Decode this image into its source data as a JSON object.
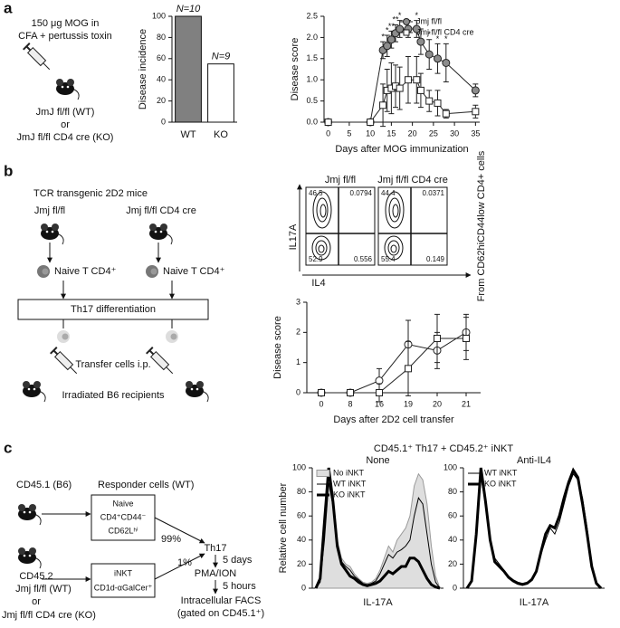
{
  "panel_labels": [
    "a",
    "b",
    "c"
  ],
  "panel_a": {
    "immunization": [
      "150 μg MOG in",
      "CFA + pertussis toxin"
    ],
    "mice": [
      "JmJ fl/fl (WT)",
      "or",
      "JmJ fl/fl CD4 cre (KO)"
    ]
  },
  "panel_b": {
    "title": "TCR transgenic 2D2 mice",
    "strains": [
      "Jmj fl/fl",
      "Jmj fl/fl CD4 cre"
    ],
    "cells": [
      "Naive T CD4⁺",
      "Naive T CD4⁺"
    ],
    "step": "Th17 differentiation",
    "transfer": "Transfer cells i.p.",
    "recipients": "Irradiated B6 recipients",
    "flow": {
      "titles": [
        "Jmj fl/fl",
        "Jmj fl/fl CD4 cre"
      ],
      "quadrants": [
        [
          46.5,
          0.0794,
          52.9,
          0.556
        ],
        [
          44.4,
          0.0371,
          55.4,
          0.149
        ]
      ],
      "y_label": "IL17A",
      "x_label": "IL4",
      "gate": "From CD62hiCD44low CD4+ cells"
    }
  },
  "panel_c": {
    "donor1": "CD45.1 (B6)",
    "responder": "Responder cells (WT)",
    "naive": [
      "Naive",
      "CD4⁺CD44⁻",
      "CD62Lʰⁱ"
    ],
    "naive_pct": "99%",
    "inkt": [
      "iNKT",
      "CD1d-αGalCer⁺"
    ],
    "inkt_pct": "1%",
    "donor2": [
      "CD45.2",
      "Jmj fl/fl (WT)",
      "or",
      "Jmj fl/fl CD4 cre (KO)"
    ],
    "steps": [
      "Th17",
      "5 days",
      "PMA/ION",
      "5 hours",
      "Intracellular FACS",
      "(gated on CD45.1⁺)"
    ],
    "histogram_title": "CD45.1⁺ Th17 + CD45.2⁺ iNKT"
  },
  "chart_data": [
    {
      "type": "bar",
      "y_label": "Disease incidence",
      "categories": [
        "WT",
        "KO"
      ],
      "values": [
        100,
        55
      ],
      "colors": [
        "#808080",
        "#ffffff"
      ],
      "annotations": [
        "N=10",
        "N=9"
      ],
      "ylim": [
        0,
        100
      ],
      "yticks": [
        0,
        20,
        40,
        60,
        80,
        100
      ]
    },
    {
      "type": "line",
      "x_label": "Days after MOG immunization",
      "y_label": "Disease score",
      "x": [
        0,
        10,
        13,
        14,
        15,
        16,
        17,
        19,
        21,
        22,
        24,
        26,
        28,
        35
      ],
      "series": [
        {
          "name": "Jmj fl/fl",
          "color": "#8c8c8c",
          "marker": "circle",
          "values": [
            0,
            0,
            1.7,
            1.8,
            1.95,
            2.1,
            2.2,
            2.2,
            2.2,
            1.9,
            1.6,
            1.5,
            1.4,
            0.75
          ],
          "errors": [
            0,
            0,
            0.2,
            0.25,
            0.2,
            0.2,
            0.2,
            0.2,
            0.2,
            0.3,
            0.35,
            0.35,
            0.45,
            0.15
          ],
          "significance": [
            null,
            null,
            "*",
            "*",
            "**",
            "**",
            "*",
            null,
            "*",
            null,
            "*",
            "*",
            "*",
            null
          ]
        },
        {
          "name": "Jmj fl/fl CD4 cre",
          "color": "#ffffff",
          "marker": "square",
          "values": [
            0,
            0,
            0.4,
            0.75,
            0.8,
            0.85,
            0.8,
            1.0,
            1.0,
            0.75,
            0.5,
            0.45,
            0.2,
            0.25
          ],
          "errors": [
            0,
            0,
            0.5,
            0.5,
            0.6,
            0.5,
            0.5,
            0.55,
            0.55,
            0.4,
            0.25,
            0.3,
            0.1,
            0.15
          ]
        }
      ],
      "xlim": [
        -1,
        36
      ],
      "xticks": [
        0,
        5,
        10,
        15,
        20,
        25,
        30,
        35
      ],
      "ylim": [
        0,
        2.5
      ],
      "yticks": [
        {
          "value": 0,
          "label": "0.0"
        },
        0.5,
        {
          "value": 1,
          "label": "1.0"
        },
        1.5,
        {
          "value": 2,
          "label": "2.0"
        },
        2.5
      ],
      "legend": "upper right"
    },
    {
      "type": "line",
      "x_label": "Days after 2D2 cell transfer",
      "y_label": "Disease score",
      "categories": [
        0,
        8,
        16,
        19,
        20,
        21
      ],
      "series": [
        {
          "color": "#ffffff",
          "marker": "circle",
          "values": [
            0,
            0,
            0.4,
            1.6,
            1.4,
            2.0
          ],
          "errors": [
            0,
            0,
            0.4,
            0.8,
            0.6,
            0.6
          ]
        },
        {
          "color": "#ffffff",
          "marker": "square",
          "values": [
            0,
            0,
            0,
            0.8,
            1.8,
            1.8
          ],
          "errors": [
            0,
            0,
            0.3,
            0.9,
            0.8,
            0.7
          ]
        }
      ],
      "ylim": [
        0,
        3
      ],
      "yticks": [
        0,
        1,
        2,
        3
      ]
    },
    {
      "type": "line",
      "title": "None",
      "x_label": "IL-17A",
      "y_label": "Relative cell number",
      "series": [
        {
          "name": "No iNKT",
          "color": "#9a9a9a",
          "fill": "#dedede",
          "width": 1,
          "values": [
            0,
            5,
            45,
            85,
            70,
            40,
            25,
            20,
            18,
            12,
            8,
            5,
            4,
            5,
            8,
            15,
            25,
            35,
            30,
            40,
            45,
            50,
            60,
            85,
            95,
            90,
            70,
            35,
            10,
            0
          ]
        },
        {
          "name": "WT iNKT",
          "color": "#000000",
          "width": 1,
          "values": [
            0,
            5,
            40,
            88,
            68,
            38,
            22,
            18,
            15,
            10,
            7,
            4,
            3,
            4,
            6,
            12,
            20,
            28,
            25,
            30,
            32,
            35,
            40,
            60,
            75,
            70,
            45,
            20,
            5,
            0
          ]
        },
        {
          "name": "KO iNKT",
          "color": "#000000",
          "width": 3,
          "values": [
            0,
            8,
            55,
            100,
            72,
            35,
            20,
            15,
            10,
            8,
            5,
            3,
            2,
            3,
            4,
            6,
            10,
            14,
            12,
            15,
            18,
            18,
            25,
            25,
            22,
            15,
            8,
            3,
            1,
            0
          ]
        }
      ],
      "ylim": [
        0,
        100
      ],
      "yticks": [
        0,
        20,
        40,
        60,
        80,
        100
      ],
      "legend": "upper left"
    },
    {
      "type": "line",
      "title": "Anti-IL4",
      "x_label": "IL-17A",
      "series": [
        {
          "name": "WT iNKT",
          "color": "#000000",
          "width": 1,
          "values": [
            0,
            5,
            40,
            92,
            70,
            40,
            25,
            20,
            15,
            10,
            7,
            5,
            4,
            5,
            8,
            15,
            28,
            40,
            50,
            45,
            55,
            70,
            85,
            95,
            90,
            75,
            50,
            20,
            5,
            0
          ]
        },
        {
          "name": "KO iNKT",
          "color": "#000000",
          "width": 3,
          "values": [
            0,
            6,
            45,
            100,
            72,
            40,
            22,
            18,
            14,
            9,
            6,
            4,
            3,
            4,
            7,
            14,
            30,
            45,
            52,
            50,
            60,
            75,
            88,
            98,
            92,
            70,
            45,
            18,
            4,
            0
          ]
        }
      ],
      "ylim": [
        0,
        100
      ],
      "yticks": [
        0,
        20,
        40,
        60,
        80,
        100
      ],
      "legend": "upper left"
    }
  ]
}
